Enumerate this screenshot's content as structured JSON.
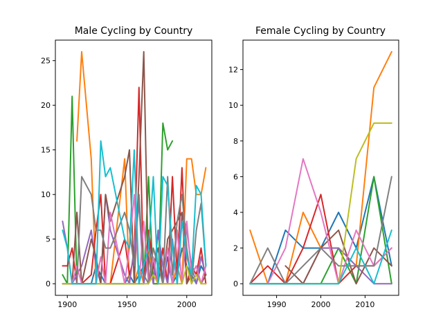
{
  "colors": [
    "#1f77b4",
    "#ff7f0e",
    "#2ca02c",
    "#d62728",
    "#9467bd",
    "#8c564b",
    "#e377c2",
    "#7f7f7f",
    "#bcbd22",
    "#17becf"
  ],
  "chart_data": [
    {
      "type": "line",
      "title": "Male Cycling by Country",
      "xlabel": "",
      "ylabel": "",
      "xlim": [
        1890,
        2021
      ],
      "ylim": [
        -1.3,
        27.3
      ],
      "xticks": [
        1900,
        1950,
        2000
      ],
      "yticks": [
        0,
        5,
        10,
        15,
        20,
        25
      ],
      "grid": false,
      "series": [
        {
          "x": [
            1896,
            1900,
            1904,
            1908,
            1912,
            1920,
            1924,
            1928,
            1932,
            1936,
            1948,
            1952,
            1956,
            1960,
            1964,
            1968,
            1972,
            1976,
            1980,
            1984,
            1988,
            1992,
            1996,
            2000,
            2004,
            2008,
            2012,
            2016
          ],
          "values": [
            0,
            0,
            0,
            0,
            0,
            0,
            2,
            1,
            0,
            0,
            0,
            1,
            0,
            1,
            2,
            5,
            0,
            6,
            0,
            3,
            0,
            1,
            4,
            2,
            1,
            0,
            2,
            1
          ]
        },
        {
          "x": [
            1908,
            1912,
            1920,
            1924,
            1928,
            1932,
            1936,
            1948,
            1952,
            1956,
            1960,
            1964,
            1968,
            1972,
            1976,
            1980,
            1984,
            1988,
            1992,
            1996,
            2000,
            2004,
            2008,
            2012,
            2016
          ],
          "values": [
            16,
            26,
            14,
            0,
            3,
            0,
            0,
            14,
            0,
            0,
            2,
            0,
            4,
            0,
            0,
            0,
            0,
            0,
            2,
            0,
            14,
            14,
            10,
            10,
            13
          ]
        },
        {
          "x": [
            1896,
            1900,
            1904,
            1908,
            1912,
            1920,
            1924,
            1928,
            1932,
            1936,
            1948,
            1952,
            1956,
            1960,
            1964,
            1968,
            1972,
            1976,
            1980,
            1984,
            1988
          ],
          "values": [
            1,
            0,
            21,
            0,
            0,
            0,
            0,
            0,
            0,
            0,
            0,
            0,
            0,
            0,
            0,
            12,
            0,
            0,
            18,
            15,
            16
          ]
        },
        {
          "x": [
            1896,
            1900,
            1904,
            1908,
            1912,
            1920,
            1924,
            1928,
            1932,
            1936,
            1948,
            1952,
            1956,
            1960,
            1964,
            1968,
            1972,
            1976,
            1980,
            1984,
            1988,
            1992,
            1996,
            2000,
            2004,
            2008,
            2012,
            2016
          ],
          "values": [
            2,
            2,
            4,
            0,
            0,
            1,
            6,
            10,
            0,
            0,
            5,
            1,
            3,
            22,
            0,
            6,
            2,
            0,
            4,
            0,
            12,
            1,
            13,
            0,
            2,
            1,
            4,
            0
          ]
        },
        {
          "x": [
            1896,
            1900,
            1904,
            1908,
            1912,
            1920,
            1924,
            1928,
            1932,
            1936,
            1948,
            1952,
            1956,
            1960,
            1964,
            1968,
            1972,
            1976,
            1980,
            1984,
            1988,
            1992,
            1996,
            2000,
            2004,
            2008,
            2012,
            2016
          ],
          "values": [
            7,
            4,
            0,
            1,
            2,
            6,
            2,
            0,
            10,
            6,
            1,
            0,
            4,
            9,
            0,
            3,
            0,
            6,
            2,
            0,
            5,
            0,
            8,
            6,
            2,
            0,
            3,
            1
          ]
        },
        {
          "x": [
            1896,
            1900,
            1904,
            1908,
            1912,
            1920,
            1924,
            1928,
            1932,
            1936,
            1948,
            1952,
            1956,
            1960,
            1964,
            1968,
            1972,
            1976,
            1980,
            1984,
            1988,
            1992,
            1996,
            2000,
            2004,
            2008,
            2012,
            2016
          ],
          "values": [
            0,
            0,
            0,
            8,
            0,
            5,
            3,
            0,
            10,
            7,
            12,
            15,
            0,
            12,
            26,
            0,
            2,
            4,
            0,
            5,
            6,
            7,
            8,
            0,
            1,
            2,
            0,
            1
          ]
        },
        {
          "x": [
            1896,
            1900,
            1904,
            1908,
            1912,
            1920,
            1924,
            1928,
            1932,
            1936,
            1948,
            1952,
            1956,
            1960,
            1964,
            1968,
            1972,
            1976,
            1980,
            1984,
            1988,
            1992,
            1996,
            2000,
            2004,
            2008,
            2012,
            2016
          ],
          "values": [
            0,
            0,
            0,
            2,
            0,
            0,
            0,
            3,
            0,
            8,
            0,
            4,
            10,
            0,
            7,
            0,
            3,
            0,
            0,
            4,
            0,
            6,
            0,
            7,
            1,
            2,
            0,
            2
          ]
        },
        {
          "x": [
            1896,
            1900,
            1904,
            1908,
            1912,
            1920,
            1924,
            1928,
            1932,
            1936,
            1948,
            1952,
            1956,
            1960,
            1964,
            1968,
            1972,
            1976,
            1980,
            1984,
            1988,
            1992,
            1996,
            2000,
            2004,
            2008,
            2012,
            2016
          ],
          "values": [
            0,
            0,
            0,
            0,
            12,
            10,
            6,
            6,
            4,
            4,
            8,
            6,
            2,
            10,
            1,
            0,
            4,
            2,
            0,
            12,
            1,
            7,
            10,
            4,
            0,
            6,
            9,
            2
          ]
        },
        {
          "x": [
            1896,
            1900,
            1904,
            1908,
            1912,
            1920,
            1924,
            1928,
            1932,
            1936,
            1948,
            1952,
            1956,
            1960,
            1964,
            1968,
            1972,
            1976,
            1980,
            1984,
            1988,
            1992,
            1996,
            2000,
            2004,
            2008,
            2012,
            2016
          ],
          "values": [
            0,
            0,
            0,
            0,
            0,
            0,
            0,
            0,
            0,
            0,
            0,
            0,
            0,
            0,
            0,
            0,
            1,
            0,
            0,
            0,
            0,
            0,
            0,
            2,
            0,
            1,
            0,
            0
          ]
        },
        {
          "x": [
            1896,
            1900,
            1904,
            1908,
            1912,
            1920,
            1924,
            1928,
            1932,
            1936,
            1948,
            1952,
            1956,
            1960,
            1964,
            1968,
            1972,
            1976,
            1980,
            1984,
            1988,
            1992,
            1996,
            2000,
            2004,
            2008,
            2012,
            2016
          ],
          "values": [
            6,
            4,
            0,
            0,
            0,
            0,
            0,
            16,
            12,
            13,
            5,
            4,
            15,
            0,
            2,
            4,
            12,
            0,
            12,
            11,
            4,
            0,
            7,
            3,
            1,
            11,
            10,
            2
          ]
        }
      ]
    },
    {
      "type": "line",
      "title": "Female Cycling by Country",
      "xlabel": "",
      "ylabel": "",
      "xlim": [
        1982.4,
        2017.6
      ],
      "ylim": [
        -0.65,
        13.65
      ],
      "xticks": [
        1990,
        2000,
        2010
      ],
      "yticks": [
        0,
        2,
        4,
        6,
        8,
        10,
        12
      ],
      "grid": false,
      "series": [
        {
          "x": [
            1984,
            1988,
            1992,
            1996,
            2000,
            2004,
            2008,
            2012,
            2016
          ],
          "values": [
            0,
            0,
            3,
            2,
            2,
            4,
            2,
            6,
            1
          ]
        },
        {
          "x": [
            1984,
            1988,
            1992,
            1996,
            2000,
            2004,
            2008,
            2012,
            2016
          ],
          "values": [
            3,
            0,
            0,
            4,
            2,
            2,
            1,
            11,
            13
          ]
        },
        {
          "x": [
            1984,
            1988,
            1992,
            1996,
            2000,
            2004,
            2008,
            2012,
            2016
          ],
          "values": [
            0,
            0,
            0,
            0,
            0,
            2,
            0,
            6,
            0
          ]
        },
        {
          "x": [
            1984,
            1988,
            1992,
            1996,
            2000,
            2004,
            2008,
            2012,
            2016
          ],
          "values": [
            0,
            1,
            0,
            2,
            5,
            0,
            1,
            1,
            2
          ]
        },
        {
          "x": [
            1984,
            1988,
            1992,
            1996,
            2000,
            2004,
            2008,
            2012,
            2016
          ],
          "values": [
            0,
            0,
            0,
            0,
            2,
            2,
            1,
            0,
            0
          ]
        },
        {
          "x": [
            1992,
            1996,
            2000,
            2004,
            2008,
            2012,
            2016
          ],
          "values": [
            1,
            0,
            2,
            3,
            0,
            2,
            1
          ]
        },
        {
          "x": [
            1984,
            1988,
            1992,
            1996,
            2000,
            2004,
            2008,
            2012,
            2016
          ],
          "values": [
            0,
            0,
            2,
            7,
            4,
            0,
            3,
            1,
            2
          ]
        },
        {
          "x": [
            1984,
            1988,
            1992,
            1996,
            2000,
            2004,
            2008,
            2012,
            2016
          ],
          "values": [
            0,
            2,
            0,
            1,
            2,
            1,
            1,
            1,
            6
          ]
        },
        {
          "x": [
            1984,
            1988,
            1992,
            1996,
            2000,
            2004,
            2008,
            2012,
            2016
          ],
          "values": [
            0,
            0,
            0,
            0,
            0,
            0,
            7,
            9,
            9
          ]
        },
        {
          "x": [
            1984,
            1988,
            1992,
            1996,
            2000,
            2004,
            2008,
            2012,
            2016
          ],
          "values": [
            0,
            0,
            0,
            0,
            0,
            0,
            2,
            0,
            3
          ]
        }
      ]
    }
  ]
}
